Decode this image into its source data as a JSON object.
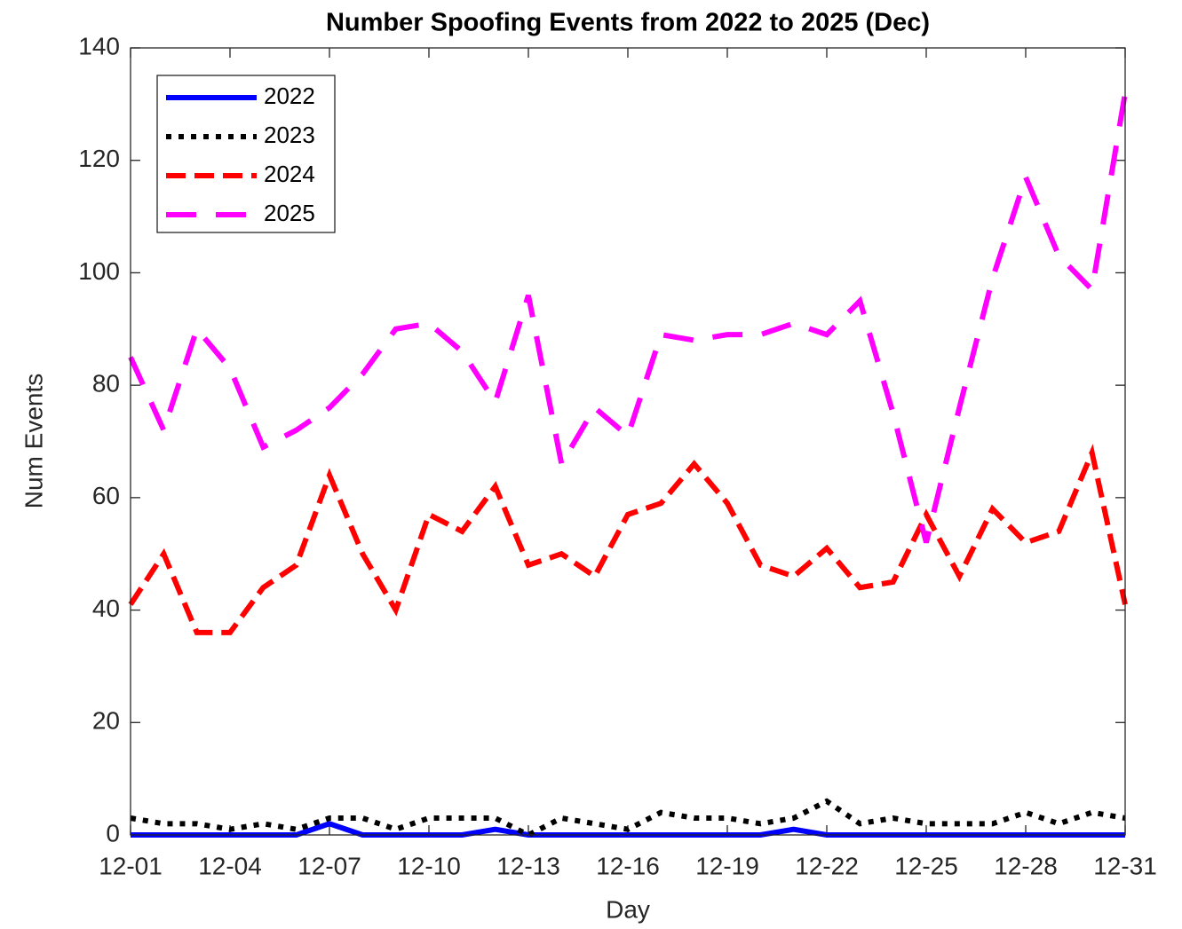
{
  "chart_data": {
    "type": "line",
    "title": "Number Spoofing Events from 2022 to 2025 (Dec)",
    "x_label": "Day",
    "y_label": "Num Events",
    "categories": [
      "12-01",
      null,
      null,
      "12-04",
      null,
      null,
      "12-07",
      null,
      null,
      "12-10",
      null,
      null,
      "12-13",
      null,
      null,
      "12-16",
      null,
      null,
      "12-19",
      null,
      null,
      "12-22",
      null,
      null,
      "12-25",
      null,
      null,
      "12-28",
      null,
      null,
      "12-31"
    ],
    "ylim": [
      0,
      140
    ],
    "yticks": [
      0,
      20,
      40,
      60,
      80,
      100,
      120,
      140
    ],
    "legend": "upper left",
    "series": [
      {
        "name": "2022",
        "color": "#0000ff",
        "line_style": "solid",
        "values": [
          0,
          0,
          0,
          0,
          0,
          0,
          2,
          0,
          0,
          0,
          0,
          1,
          0,
          0,
          0,
          0,
          0,
          0,
          0,
          0,
          1,
          0,
          0,
          0,
          0,
          0,
          0,
          0,
          0,
          0,
          0
        ]
      },
      {
        "name": "2023",
        "color": "#000000",
        "line_style": "dotted",
        "values": [
          3,
          2,
          2,
          1,
          2,
          1,
          3,
          3,
          1,
          3,
          3,
          3,
          0,
          3,
          2,
          1,
          4,
          3,
          3,
          2,
          3,
          6,
          2,
          3,
          2,
          2,
          2,
          4,
          2,
          4,
          3
        ]
      },
      {
        "name": "2024",
        "color": "#ff0000",
        "line_style": "dashed",
        "values": [
          41,
          50,
          36,
          36,
          44,
          48,
          64,
          50,
          40,
          57,
          54,
          62,
          48,
          50,
          46,
          57,
          59,
          66,
          59,
          48,
          46,
          51,
          44,
          45,
          57,
          46,
          58,
          52,
          54,
          68,
          41
        ]
      },
      {
        "name": "2025",
        "color": "#ff00ff",
        "line_style": "longdash",
        "values": [
          85,
          72,
          90,
          83,
          69,
          72,
          76,
          82,
          90,
          91,
          86,
          77,
          96,
          66,
          76,
          71,
          89,
          88,
          89,
          89,
          91,
          89,
          95,
          75,
          52,
          76,
          99,
          117,
          103,
          97,
          132
        ]
      }
    ]
  }
}
